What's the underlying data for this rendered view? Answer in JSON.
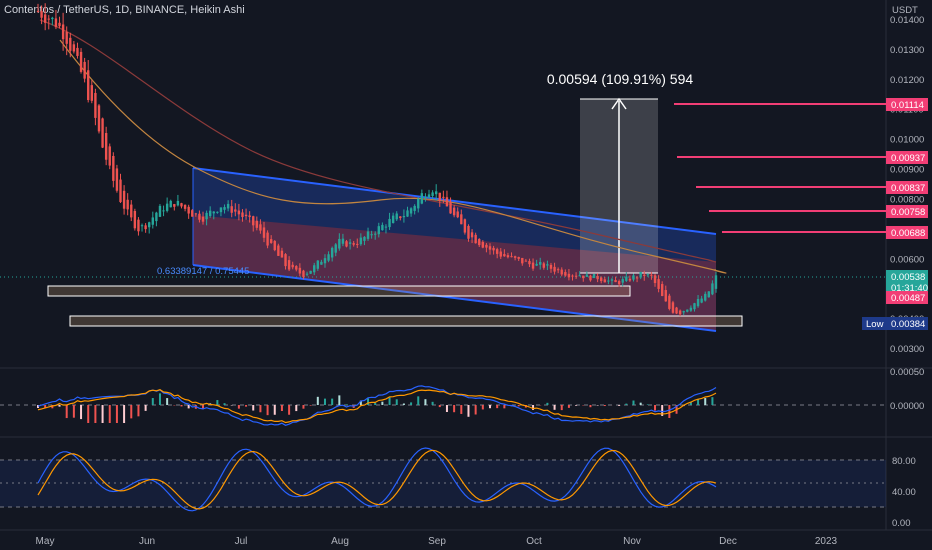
{
  "header": {
    "title": "Contentos / TetherUS, 1D, BINANCE, Heikin Ashi",
    "currency": "USDT"
  },
  "chart_data": {
    "type": "candlestick",
    "symbol": "Contentos / TetherUS",
    "interval": "1D",
    "exchange": "BINANCE",
    "style": "Heikin Ashi",
    "currency": "USDT",
    "price_axis_ticks": [
      "0.01400",
      "0.01300",
      "0.01200",
      "0.01100",
      "0.01000",
      "0.00900",
      "0.00800",
      "0.00700",
      "0.00600",
      "0.00500",
      "0.00400",
      "0.00300"
    ],
    "time_axis_ticks": [
      "May",
      "Jun",
      "Jul",
      "Aug",
      "Sep",
      "Oct",
      "Nov",
      "Dec",
      "2023"
    ],
    "current_price": "0.00538",
    "countdown": "01:31:40",
    "low_label": "Low",
    "low_value": "0.00384",
    "support_value": "0.00487",
    "targets": [
      "0.01114",
      "0.00937",
      "0.00837",
      "0.00758",
      "0.00688"
    ],
    "measure_label": "0.00594 (109.91%) 594",
    "fib_label": "0.63389147 / 0.75445",
    "approx_close_series": [
      0.0143,
      0.0141,
      0.0139,
      0.0135,
      0.0128,
      0.012,
      0.011,
      0.0098,
      0.0088,
      0.008,
      0.0074,
      0.007,
      0.0072,
      0.0076,
      0.0078,
      0.0079,
      0.0077,
      0.0075,
      0.0074,
      0.0076,
      0.0078,
      0.0077,
      0.0075,
      0.0073,
      0.007,
      0.0066,
      0.0062,
      0.0058,
      0.0056,
      0.0055,
      0.0057,
      0.006,
      0.0064,
      0.0066,
      0.0065,
      0.0066,
      0.0068,
      0.007,
      0.0072,
      0.0074,
      0.0075,
      0.0078,
      0.0082,
      0.0084,
      0.008,
      0.0076,
      0.0072,
      0.0068,
      0.0066,
      0.0064,
      0.0062,
      0.0061,
      0.006,
      0.0059,
      0.0058,
      0.0058,
      0.0057,
      0.0056,
      0.0055,
      0.0055,
      0.0054,
      0.0054,
      0.0053,
      0.0052,
      0.0053,
      0.0054,
      0.0055,
      0.0054,
      0.0048,
      0.0043,
      0.0042,
      0.0044,
      0.0046,
      0.0048,
      0.0054
    ],
    "macd_ticks": [
      "0.00050",
      "0.00000"
    ],
    "stoch_ticks": [
      "80.00",
      "40.00",
      "0.00"
    ],
    "stoch_bands": [
      80,
      20
    ]
  },
  "colors": {
    "background": "#131722",
    "up": "#26a69a",
    "down": "#ef5350",
    "channel_line": "#2962ff",
    "target_line": "#f23e75",
    "stoch_k": "#2962ff",
    "stoch_d": "#ff9800"
  }
}
